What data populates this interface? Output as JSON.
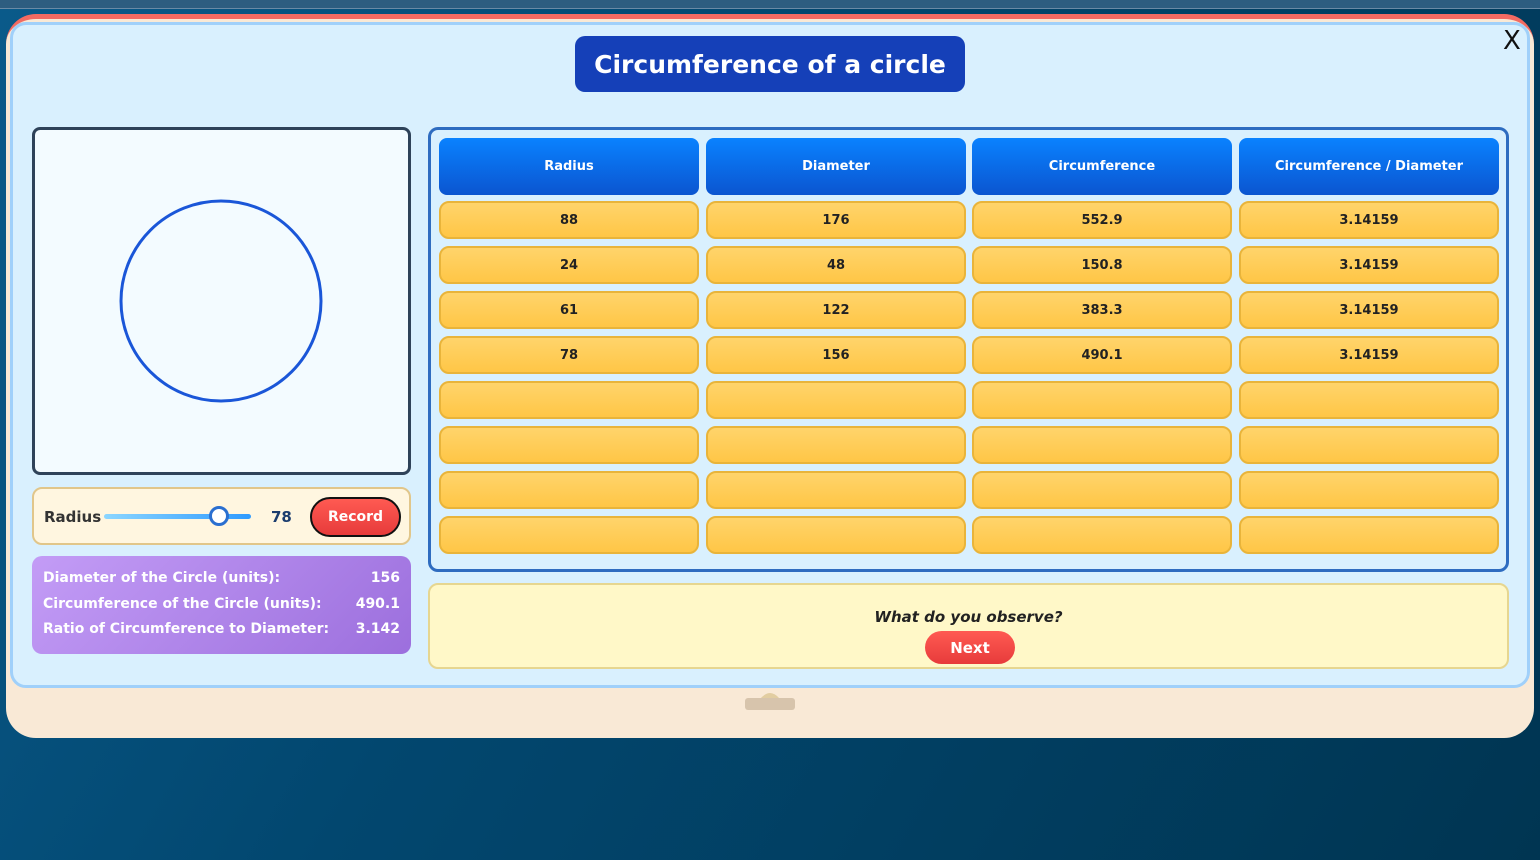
{
  "title": "Circumference of a circle",
  "close_label": "X",
  "slider": {
    "label": "Radius",
    "value": "78",
    "min": 0,
    "max": 100,
    "record_label": "Record"
  },
  "info": [
    {
      "label": "Diameter of the Circle (units):",
      "value": "156"
    },
    {
      "label": "Circumference of the Circle (units):",
      "value": "490.1"
    },
    {
      "label": "Ratio of Circumference to Diameter:",
      "value": "3.142"
    }
  ],
  "table": {
    "headers": [
      "Radius",
      "Diameter",
      "Circumference",
      "Circumference / Diameter"
    ],
    "rows": [
      [
        "88",
        "176",
        "552.9",
        "3.14159"
      ],
      [
        "24",
        "48",
        "150.8",
        "3.14159"
      ],
      [
        "61",
        "122",
        "383.3",
        "3.14159"
      ],
      [
        "78",
        "156",
        "490.1",
        "3.14159"
      ],
      [
        "",
        "",
        "",
        ""
      ],
      [
        "",
        "",
        "",
        ""
      ],
      [
        "",
        "",
        "",
        ""
      ],
      [
        "",
        "",
        "",
        ""
      ]
    ]
  },
  "observe": {
    "question": "What do you observe?",
    "next_label": "Next"
  },
  "colors": {
    "title_bg": "#1540b8",
    "circle": "#1a56d8",
    "button": "#e73b3b",
    "cell": "#ffc646"
  }
}
